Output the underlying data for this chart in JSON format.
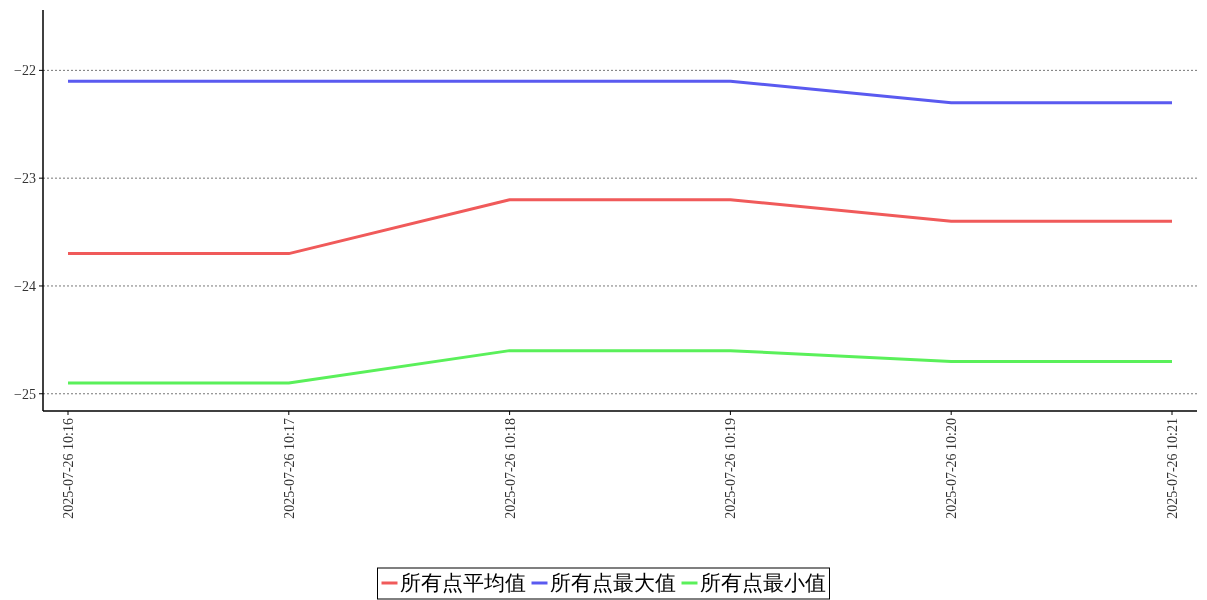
{
  "chart_data": {
    "type": "line",
    "categories": [
      "2025-07-26 10:16",
      "2025-07-26 10:17",
      "2025-07-26 10:18",
      "2025-07-26 10:19",
      "2025-07-26 10:20",
      "2025-07-26 10:21"
    ],
    "series": [
      {
        "name": "所有点平均值",
        "color": "#f05a5a",
        "values": [
          -23.7,
          -23.7,
          -23.2,
          -23.2,
          -23.4,
          -23.4
        ]
      },
      {
        "name": "所有点最大值",
        "color": "#5a5af0",
        "values": [
          -22.1,
          -22.1,
          -22.1,
          -22.1,
          -22.3,
          -22.3
        ]
      },
      {
        "name": "所有点最小值",
        "color": "#5af05a",
        "values": [
          -24.9,
          -24.9,
          -24.6,
          -24.6,
          -24.7,
          -24.7
        ]
      }
    ],
    "ylim": [
      -25.16,
      -21.44
    ],
    "yticks": [
      -25,
      -24,
      -23,
      -22
    ],
    "grid": "y",
    "legend": "bottom"
  }
}
